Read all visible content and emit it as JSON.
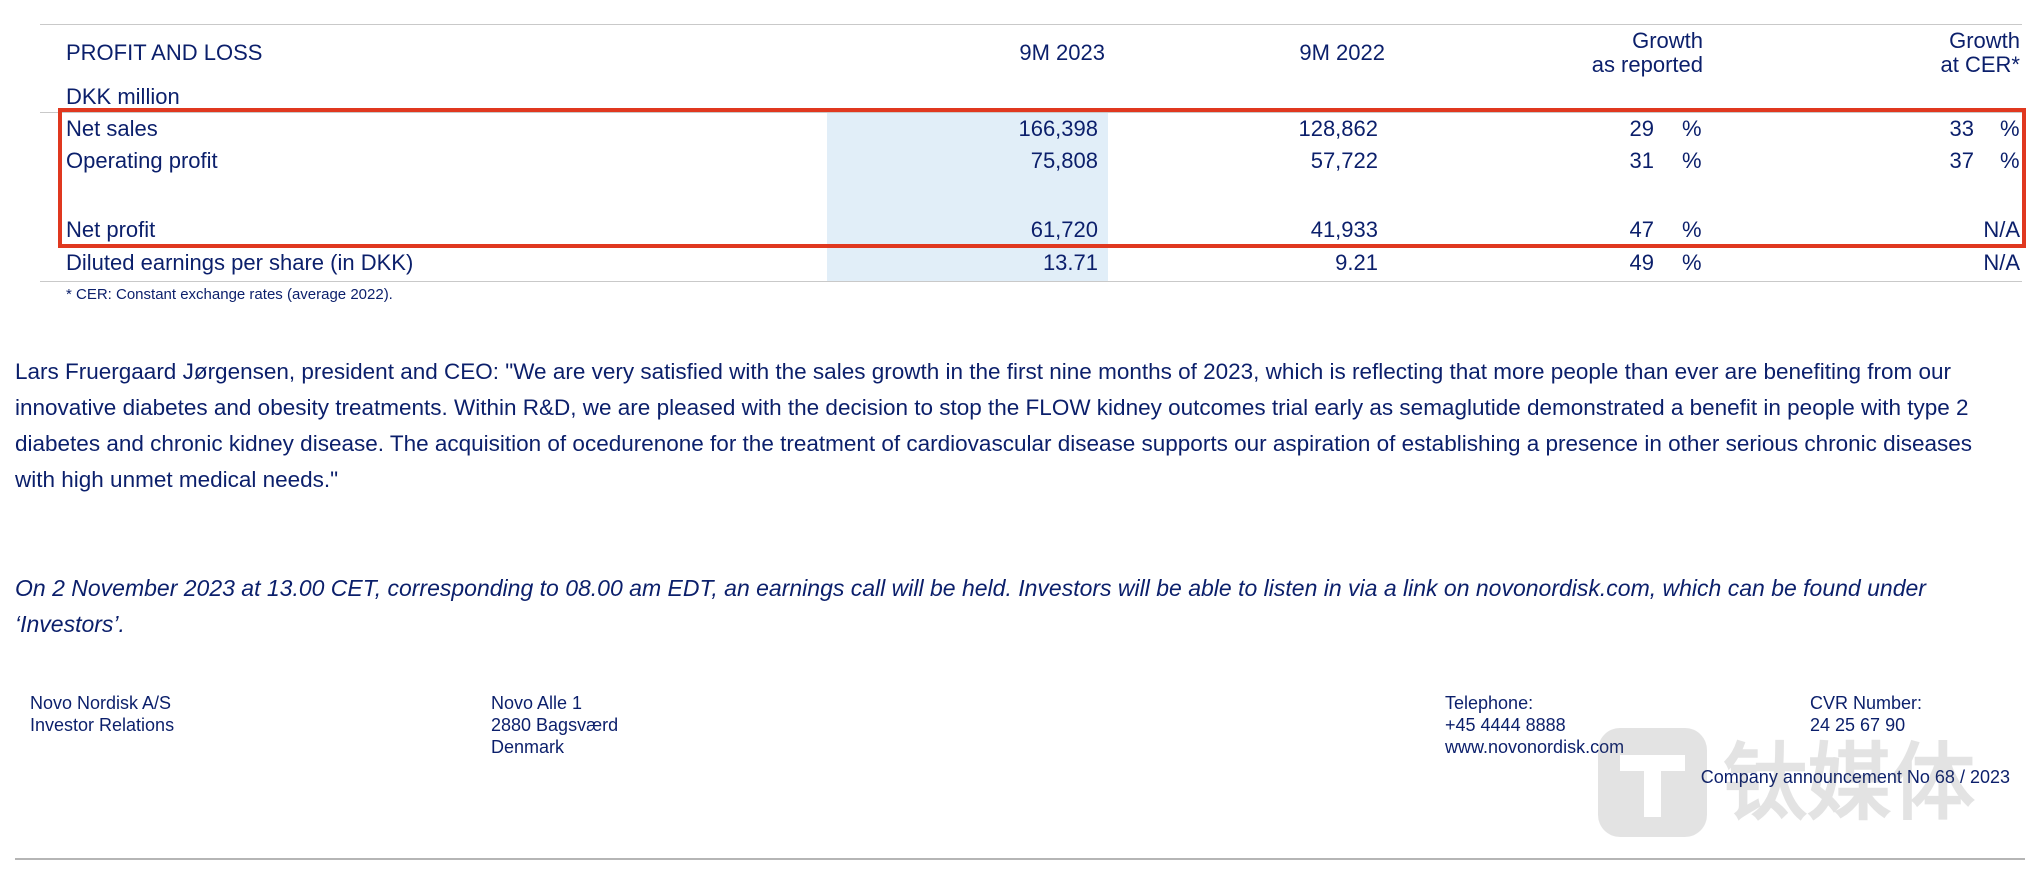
{
  "table": {
    "title": "PROFIT AND LOSS",
    "unit": "DKK million",
    "headers": [
      "9M 2023",
      "9M 2022",
      "Growth",
      "as reported",
      "Growth",
      "at CER*"
    ],
    "rows": [
      {
        "label": "Net sales",
        "v2023": "166,398",
        "v2022": "128,862",
        "growth": "29",
        "growth_pct": "%",
        "cer": "33",
        "cer_pct": "%"
      },
      {
        "label": "Operating profit",
        "v2023": "75,808",
        "v2022": "57,722",
        "growth": "31",
        "growth_pct": "%",
        "cer": "37",
        "cer_pct": "%"
      },
      {
        "label": "Net profit",
        "v2023": "61,720",
        "v2022": "41,933",
        "growth": "47",
        "growth_pct": "%",
        "cer": "N/A"
      },
      {
        "label": "Diluted earnings per share (in DKK)",
        "v2023": "13.71",
        "v2022": "9.21",
        "growth": "49",
        "growth_pct": "%",
        "cer": "N/A"
      }
    ],
    "footnote": "* CER: Constant exchange rates (average 2022)."
  },
  "quote": "Lars Fruergaard Jørgensen, president and CEO: \"We are very satisfied with the sales growth in the first nine months of 2023, which is reflecting that more people than ever are benefiting from our innovative diabetes and obesity treatments. Within R&D, we are pleased with the decision to stop the FLOW kidney outcomes trial early as semaglutide demonstrated a benefit in people with type 2 diabetes and chronic kidney disease. The acquisition of ocedurenone for the treatment of cardiovascular disease supports our aspiration of establishing a presence in other serious chronic diseases with high unmet medical needs.\"",
  "earnings_call": "On 2 November 2023 at 13.00 CET, corresponding to 08.00 am EDT, an earnings call will be held. Investors will be able to listen in via a link on novonordisk.com, which can be found under ‘Investors’.",
  "footer": {
    "company": [
      "Novo Nordisk A/S",
      "Investor Relations"
    ],
    "address": [
      "Novo Alle 1",
      "2880 Bagsværd",
      "Denmark"
    ],
    "contact": [
      "Telephone:",
      "+45 4444 8888",
      "www.novonordisk.com"
    ],
    "cvr": [
      "CVR Number:",
      "24 25 67 90"
    ],
    "announcement": "Company announcement No 68 / 2023"
  },
  "colors": {
    "text": "#0b1f6b",
    "highlight": "#e1eef8",
    "box": "#e0381f"
  },
  "watermark": {
    "icon": "t-logo-icon",
    "text": "钛媒体"
  }
}
